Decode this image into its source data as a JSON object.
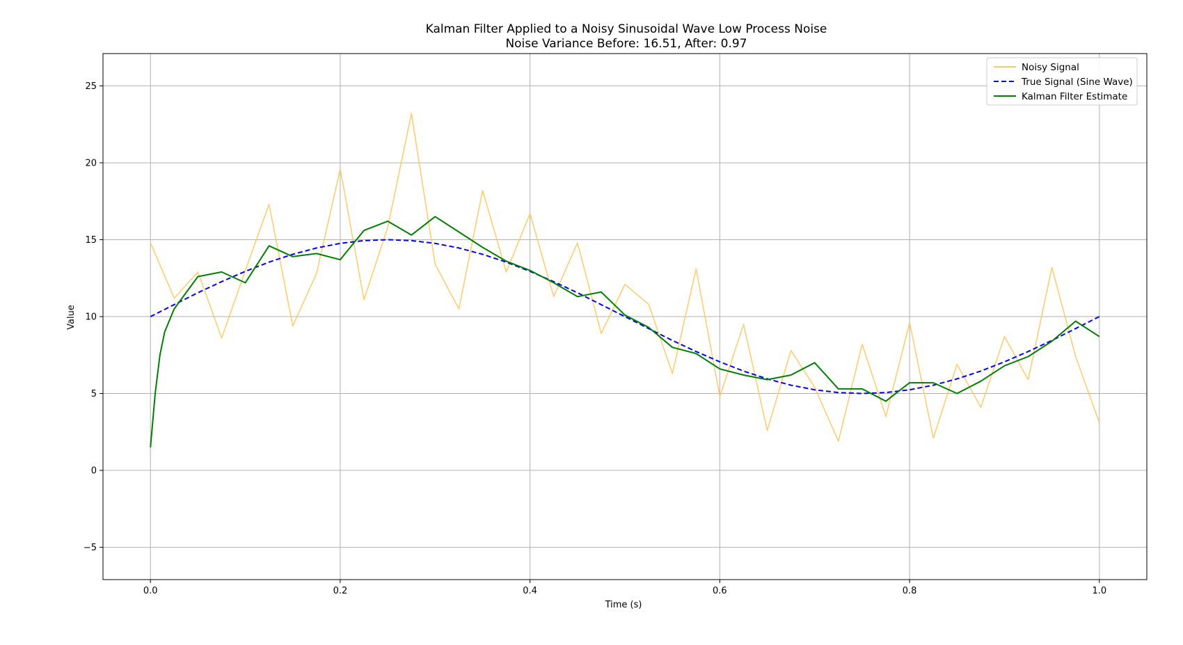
{
  "chart_data": {
    "type": "line",
    "title": "Kalman Filter Applied to a Noisy Sinusoidal Wave Low Process Noise",
    "subtitle": "Noise Variance Before: 16.51, After: 0.97",
    "xlabel": "Time (s)",
    "ylabel": "Value",
    "xlim": [
      -0.05,
      1.05
    ],
    "ylim": [
      -7.1,
      27.1
    ],
    "x_ticks": [
      0.0,
      0.2,
      0.4,
      0.6,
      0.8,
      1.0
    ],
    "x_tick_labels": [
      "0.0",
      "0.2",
      "0.4",
      "0.6",
      "0.8",
      "1.0"
    ],
    "y_ticks": [
      -5,
      0,
      5,
      10,
      15,
      20,
      25
    ],
    "y_tick_labels": [
      "−5",
      "0",
      "5",
      "10",
      "15",
      "20",
      "25"
    ],
    "grid": true,
    "legend_position": "top-right",
    "series": [
      {
        "name": "Noisy Signal",
        "color": "#FFC864",
        "style": "solid",
        "x": [
          0.0,
          0.025,
          0.05,
          0.075,
          0.1,
          0.125,
          0.15,
          0.175,
          0.2,
          0.225,
          0.25,
          0.275,
          0.3,
          0.325,
          0.35,
          0.375,
          0.4,
          0.425,
          0.45,
          0.475,
          0.5,
          0.525,
          0.55,
          0.575,
          0.6,
          0.625,
          0.65,
          0.675,
          0.7,
          0.725,
          0.75,
          0.775,
          0.8,
          0.825,
          0.85,
          0.875,
          0.9,
          0.925,
          0.95,
          0.975,
          1.0
        ],
        "values": [
          14.8,
          11.2,
          12.9,
          8.6,
          13.0,
          17.3,
          9.4,
          12.8,
          19.6,
          11.1,
          15.8,
          23.2,
          13.4,
          10.5,
          18.2,
          12.9,
          16.7,
          11.3,
          14.8,
          8.9,
          12.1,
          10.8,
          6.3,
          13.1,
          4.8,
          9.5,
          2.6,
          7.8,
          5.4,
          1.9,
          8.2,
          3.5,
          9.6,
          2.1,
          6.9,
          4.1,
          8.7,
          5.9,
          13.2,
          7.4,
          3.1
        ]
      },
      {
        "name": "True Signal (Sine Wave)",
        "color": "#0000FF",
        "style": "dashed",
        "x": [
          0.0,
          0.025,
          0.05,
          0.075,
          0.1,
          0.125,
          0.15,
          0.175,
          0.2,
          0.225,
          0.25,
          0.275,
          0.3,
          0.325,
          0.35,
          0.375,
          0.4,
          0.425,
          0.45,
          0.475,
          0.5,
          0.525,
          0.55,
          0.575,
          0.6,
          0.625,
          0.65,
          0.675,
          0.7,
          0.725,
          0.75,
          0.775,
          0.8,
          0.825,
          0.85,
          0.875,
          0.9,
          0.925,
          0.95,
          0.975,
          1.0
        ],
        "values": [
          10.0,
          10.78,
          11.55,
          12.27,
          12.94,
          13.54,
          14.05,
          14.46,
          14.76,
          14.94,
          15.0,
          14.94,
          14.76,
          14.46,
          14.05,
          13.54,
          12.94,
          12.27,
          11.55,
          10.78,
          10.0,
          9.22,
          8.45,
          7.73,
          7.06,
          6.46,
          5.95,
          5.54,
          5.24,
          5.06,
          5.0,
          5.06,
          5.24,
          5.54,
          5.95,
          6.46,
          7.06,
          7.73,
          8.45,
          9.22,
          10.0
        ]
      },
      {
        "name": "Kalman Filter Estimate",
        "color": "#007F00",
        "style": "solid",
        "x": [
          0.0,
          0.005,
          0.01,
          0.015,
          0.025,
          0.05,
          0.075,
          0.1,
          0.125,
          0.15,
          0.175,
          0.2,
          0.225,
          0.25,
          0.275,
          0.3,
          0.325,
          0.35,
          0.375,
          0.4,
          0.425,
          0.45,
          0.475,
          0.5,
          0.525,
          0.55,
          0.575,
          0.6,
          0.625,
          0.65,
          0.675,
          0.7,
          0.725,
          0.75,
          0.775,
          0.8,
          0.825,
          0.85,
          0.875,
          0.9,
          0.925,
          0.95,
          0.975,
          1.0
        ],
        "values": [
          1.5,
          5.0,
          7.5,
          9.0,
          10.5,
          12.6,
          12.9,
          12.2,
          14.6,
          13.9,
          14.1,
          13.7,
          15.6,
          16.2,
          15.3,
          16.5,
          15.5,
          14.5,
          13.6,
          13.0,
          12.2,
          11.3,
          11.6,
          10.1,
          9.3,
          8.0,
          7.6,
          6.6,
          6.2,
          5.9,
          6.2,
          7.0,
          5.3,
          5.3,
          4.5,
          5.7,
          5.7,
          5.0,
          5.8,
          6.8,
          7.4,
          8.4,
          9.7,
          8.7
        ]
      }
    ]
  }
}
